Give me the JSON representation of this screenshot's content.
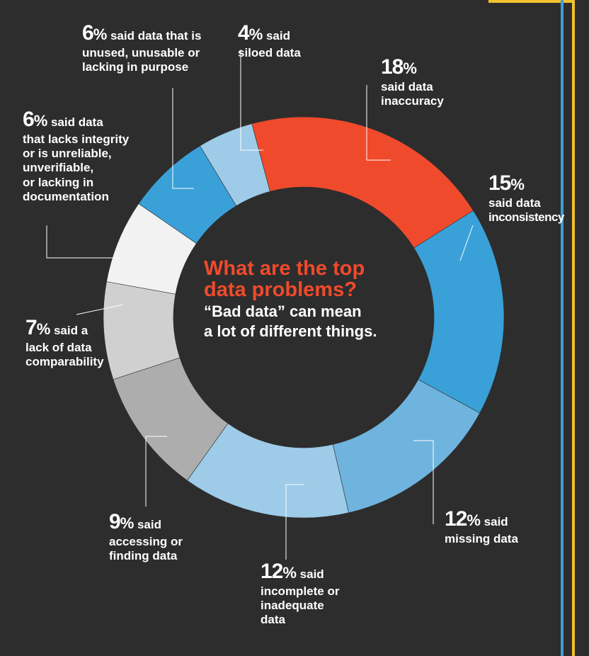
{
  "chart_data": {
    "type": "pie",
    "title": "What are the top data problems?",
    "subtitle": "“Bad data” can mean a lot of different things.",
    "slices": [
      {
        "value": 18,
        "pct": "18",
        "label_text": "said data inaccuracy",
        "color": "#f04a2c"
      },
      {
        "value": 15,
        "pct": "15",
        "label_text": "said data inconsistency",
        "color": "#3aa0d8"
      },
      {
        "value": 12,
        "pct": "12",
        "label_text": "said missing data",
        "color": "#6fb4de"
      },
      {
        "value": 12,
        "pct": "12",
        "label_text": "said incomplete or inadequate data",
        "color": "#9dcbe8"
      },
      {
        "value": 9,
        "pct": "9",
        "label_text": "said accessing or finding data",
        "color": "#adadad"
      },
      {
        "value": 7,
        "pct": "7",
        "label_text": "said a lack of data comparability",
        "color": "#d0d0d0"
      },
      {
        "value": 6,
        "pct": "6",
        "label_text": "said data that lacks integrity or is unreliable, unverifiable, or lacking in documentation",
        "color": "#f2f2f2"
      },
      {
        "value": 6,
        "pct": "6",
        "label_text": "said data that is unused, unusable or lacking in purpose",
        "color": "#3aa0d8"
      },
      {
        "value": 4,
        "pct": "4",
        "label_text": "said siloed data",
        "color": "#9dcbe8"
      }
    ]
  },
  "labels": {
    "inaccuracy": {
      "pct": "18",
      "sym": "%",
      "line1": "said data",
      "line2": "inaccuracy"
    },
    "inconsistency": {
      "pct": "15",
      "sym": "%",
      "line1": "said data",
      "line2": "inconsistency"
    },
    "missing": {
      "pct": "12",
      "sym": "%",
      "inline": " said",
      "line1": "missing data"
    },
    "incomplete": {
      "pct": "12",
      "sym": "%",
      "inline": " said",
      "line1": "incomplete or",
      "line2": "inadequate",
      "line3": "data"
    },
    "accessing": {
      "pct": "9",
      "sym": "%",
      "inline": " said",
      "line1": "accessing or",
      "line2": "finding data"
    },
    "comparability": {
      "pct": "7",
      "sym": "%",
      "inline": " said a",
      "line1": "lack of data",
      "line2": "comparability"
    },
    "integrity": {
      "pct": "6",
      "sym": "%",
      "inline": " said data",
      "line1": "that lacks integrity",
      "line2": "or is unreliable,",
      "line3": "unverifiable,",
      "line4": "or lacking in",
      "line5": "documentation"
    },
    "unused": {
      "pct": "6",
      "sym": "%",
      "inline": " said data that is",
      "line1": "unused, unusable or",
      "line2": "lacking in purpose"
    },
    "siloed": {
      "pct": "4",
      "sym": "%",
      "inline": " said",
      "line1": "siloed data"
    }
  },
  "center": {
    "headline1": "What are the top",
    "headline2": "data problems?",
    "sub1": "“Bad data” can mean",
    "sub2": "a lot of different things."
  }
}
